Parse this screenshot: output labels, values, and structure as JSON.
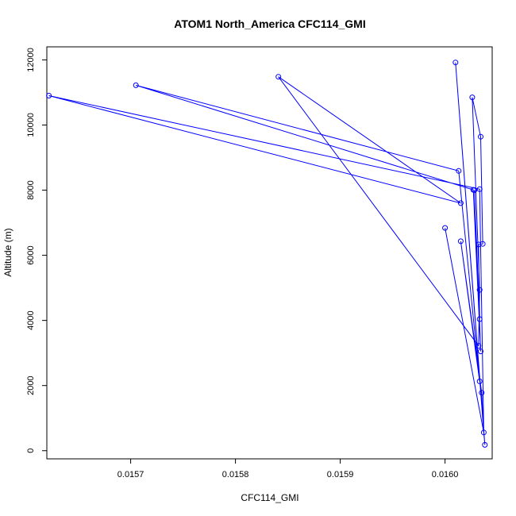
{
  "chart_data": {
    "type": "line",
    "title": "ATOM1 North_America CFC114_GMI",
    "xlabel": "CFC114_GMI",
    "ylabel": "Altitude (m)",
    "xlim": [
      0.01562,
      0.016045
    ],
    "ylim": [
      -250,
      12400
    ],
    "x_ticks": [
      0.0157,
      0.0158,
      0.0159,
      0.016
    ],
    "x_tick_labels": [
      "0.0157",
      "0.0158",
      "0.0159",
      "0.0160"
    ],
    "y_ticks": [
      0,
      2000,
      4000,
      6000,
      8000,
      10000,
      12000
    ],
    "y_tick_labels": [
      "0",
      "2000",
      "4000",
      "6000",
      "8000",
      "10000",
      "12000"
    ],
    "grid": false,
    "legend": "none",
    "series": [
      {
        "color": "#0000ff",
        "marker": "open-circle",
        "points": [
          {
            "x": 0.016038,
            "y": 180
          },
          {
            "x": 0.016037,
            "y": 560
          },
          {
            "x": 0.016035,
            "y": 1780
          },
          {
            "x": 0.016033,
            "y": 2130
          },
          {
            "x": 0.016034,
            "y": 3050
          },
          {
            "x": 0.016032,
            "y": 3220
          },
          {
            "x": 0.016033,
            "y": 4040
          },
          {
            "x": 0.016033,
            "y": 4940
          },
          {
            "x": 0.016032,
            "y": 6330
          },
          {
            "x": 0.016036,
            "y": 6350
          },
          {
            "x": 0.016015,
            "y": 6430
          },
          {
            "x": 0.016,
            "y": 6840
          },
          {
            "x": 0.016015,
            "y": 7600
          },
          {
            "x": 0.016028,
            "y": 8000
          },
          {
            "x": 0.016027,
            "y": 8010
          },
          {
            "x": 0.016033,
            "y": 8030
          },
          {
            "x": 0.016013,
            "y": 8590
          },
          {
            "x": 0.016034,
            "y": 9640
          },
          {
            "x": 0.016026,
            "y": 10850
          },
          {
            "x": 0.01601,
            "y": 11920
          },
          {
            "x": 0.015841,
            "y": 11480
          },
          {
            "x": 0.015705,
            "y": 11220
          },
          {
            "x": 0.015622,
            "y": 10900
          }
        ],
        "path": [
          [
            0.016038,
            180
          ],
          [
            0.016037,
            560
          ],
          [
            0.016,
            6840
          ],
          [
            0.016037,
            560
          ],
          [
            0.016035,
            1780
          ],
          [
            0.016015,
            6430
          ],
          [
            0.016033,
            2130
          ],
          [
            0.016013,
            8590
          ],
          [
            0.015705,
            11220
          ],
          [
            0.016027,
            8010
          ],
          [
            0.016034,
            3050
          ],
          [
            0.016028,
            8000
          ],
          [
            0.016033,
            4040
          ],
          [
            0.016032,
            6330
          ],
          [
            0.016036,
            6350
          ],
          [
            0.016034,
            9640
          ],
          [
            0.016026,
            10850
          ],
          [
            0.016033,
            4940
          ],
          [
            0.016032,
            3220
          ],
          [
            0.015841,
            11480
          ],
          [
            0.016015,
            7600
          ],
          [
            0.015622,
            10900
          ],
          [
            0.016033,
            8030
          ],
          [
            0.016037,
            560
          ],
          [
            0.01601,
            11920
          ],
          [
            0.016038,
            180
          ]
        ]
      }
    ]
  }
}
